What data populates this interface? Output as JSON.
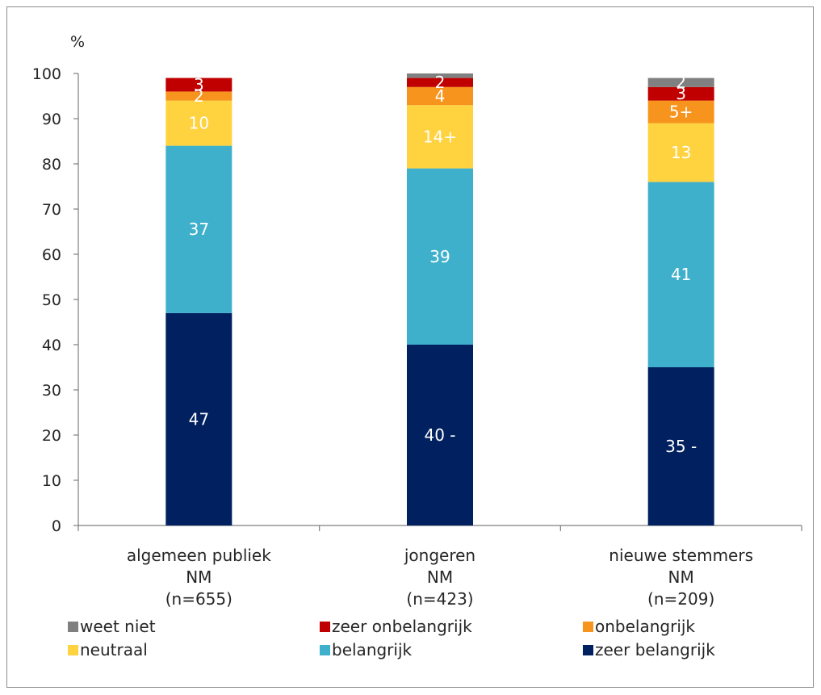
{
  "chart_data": {
    "type": "bar",
    "stacked": true,
    "ylabel": "%",
    "ylim": [
      0,
      100
    ],
    "yticks": [
      0,
      10,
      20,
      30,
      40,
      50,
      60,
      70,
      80,
      90,
      100
    ],
    "categories": [
      [
        "algemeen publiek",
        "NM",
        "(n=655)"
      ],
      [
        "jongeren",
        "NM",
        "(n=423)"
      ],
      [
        "nieuwe stemmers",
        "NM",
        "(n=209)"
      ]
    ],
    "series": [
      {
        "name": "zeer belangrijk",
        "color": "#002060",
        "values": [
          47,
          40,
          35
        ],
        "labels": [
          "47",
          "40 -",
          "35 -"
        ]
      },
      {
        "name": "belangrijk",
        "color": "#3fb0cc",
        "values": [
          37,
          39,
          41
        ],
        "labels": [
          "37",
          "39",
          "41"
        ]
      },
      {
        "name": "neutraal",
        "color": "#ffd23f",
        "values": [
          10,
          14,
          13
        ],
        "labels": [
          "10",
          "14+",
          "13"
        ]
      },
      {
        "name": "onbelangrijk",
        "color": "#f7941d",
        "values": [
          2,
          4,
          5
        ],
        "labels": [
          "2",
          "4",
          "5+"
        ]
      },
      {
        "name": "zeer onbelangrijk",
        "color": "#c00000",
        "values": [
          3,
          2,
          3
        ],
        "labels": [
          "3",
          "2",
          "3"
        ]
      },
      {
        "name": "weet niet",
        "color": "#808080",
        "values": [
          0,
          1,
          2
        ],
        "labels": [
          "",
          "",
          "2"
        ]
      }
    ],
    "legend": {
      "placement": "bottom",
      "order": [
        "weet niet",
        "zeer onbelangrijk",
        "onbelangrijk",
        "neutraal",
        "belangrijk",
        "zeer belangrijk"
      ]
    },
    "grid": false
  }
}
